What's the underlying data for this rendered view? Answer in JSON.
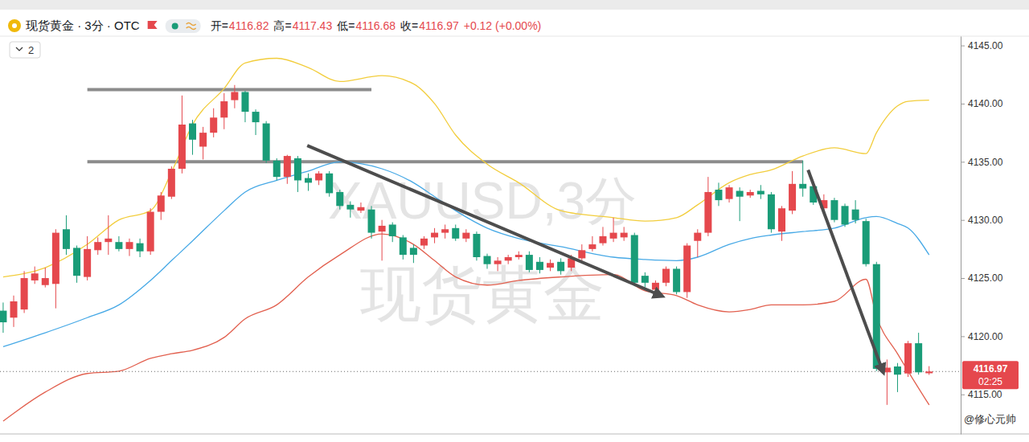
{
  "chart_data": {
    "type": "candlestick",
    "title": "现货黄金 · 3分 · OTC",
    "header": [
      {
        "label": "开=",
        "value": 4116.82
      },
      {
        "label": "高=",
        "value": 4117.43
      },
      {
        "label": "低=",
        "value": 4116.68
      },
      {
        "label": "收=",
        "value": 4116.97
      }
    ],
    "change": "+0.12 (+0.00%)",
    "dropdown": 2,
    "watermark": [
      "XAUUSD,3分",
      "现货黄金"
    ],
    "countdown": "02:25",
    "credit": "@修心元帅",
    "open": [
      4122.2,
      4121.6,
      4122.3,
      4124.8,
      4124.4,
      4124.5,
      4129.2,
      4127.6,
      4125.1,
      4127.4,
      4128.1,
      4128.1,
      4127.5,
      4128.0,
      4127.3,
      4130.7,
      4132.0,
      4134.4,
      4138.3,
      4136.3,
      4137.5,
      4138.8,
      4140.3,
      4141.0,
      4139.3,
      4138.3,
      4135.1,
      4133.7,
      4135.3,
      4133.6,
      4133.4,
      4134.0,
      4132.4,
      4131.3,
      4130.8,
      4130.9,
      4129.0,
      4129.6,
      4128.5,
      4127.6,
      4127.8,
      4128.5,
      4128.9,
      4129.3,
      4128.4,
      4128.8,
      4126.9,
      4126.2,
      4126.5,
      4126.8,
      4127.0,
      4126.4,
      4125.9,
      4126.4,
      4125.9,
      4126.7,
      4127.5,
      4128.0,
      4128.4,
      4128.5,
      4128.7,
      4125.2,
      4124.0,
      4124.6,
      4125.8,
      4123.8,
      4128.2,
      4128.9,
      4132.6,
      4131.8,
      4132.5,
      4132.1,
      4132.5,
      4132.2,
      4129.0,
      4130.8,
      4133.1,
      4132.9,
      4131.0,
      4131.7,
      4131.2,
      4130.9,
      4129.9,
      4126.2,
      4116.9,
      4117.4,
      4116.8,
      4119.4,
      4116.82
    ],
    "high": [
      4122.9,
      4123.5,
      4125.6,
      4126.0,
      4125.9,
      4129.2,
      4130.4,
      4127.8,
      4128.6,
      4128.5,
      4130.4,
      4128.6,
      4128.4,
      4128.4,
      4131.0,
      4132.4,
      4134.6,
      4140.7,
      4138.6,
      4138.0,
      4139.6,
      4140.9,
      4141.6,
      4141.1,
      4139.5,
      4138.5,
      4135.3,
      4135.6,
      4135.5,
      4134.0,
      4134.2,
      4134.2,
      4132.6,
      4131.6,
      4131.5,
      4131.2,
      4130.0,
      4129.8,
      4128.7,
      4127.9,
      4128.6,
      4129.3,
      4129.6,
      4129.6,
      4129.2,
      4129.0,
      4127.1,
      4126.8,
      4127.0,
      4127.3,
      4127.3,
      4126.8,
      4126.6,
      4126.7,
      4127.0,
      4127.9,
      4128.6,
      4129.4,
      4130.2,
      4129.4,
      4128.9,
      4125.5,
      4124.8,
      4126.0,
      4126.0,
      4128.0,
      4129.2,
      4133.7,
      4133.2,
      4133.0,
      4132.8,
      4132.6,
      4133.0,
      4132.4,
      4131.2,
      4134.2,
      4135.1,
      4133.1,
      4132.2,
      4131.9,
      4131.4,
      4131.7,
      4130.1,
      4126.4,
      4118.0,
      4117.7,
      4119.6,
      4120.3,
      4117.43
    ],
    "low": [
      4120.3,
      4120.8,
      4122.0,
      4124.5,
      4124.2,
      4122.4,
      4127.0,
      4124.6,
      4124.8,
      4127.0,
      4127.0,
      4127.3,
      4126.9,
      4126.8,
      4127.0,
      4130.0,
      4131.8,
      4134.0,
      4135.6,
      4135.2,
      4137.1,
      4137.8,
      4139.6,
      4138.4,
      4137.3,
      4134.9,
      4133.4,
      4133.1,
      4132.4,
      4132.5,
      4133.0,
      4132.0,
      4130.9,
      4130.2,
      4130.6,
      4128.4,
      4126.5,
      4128.1,
      4126.6,
      4126.3,
      4127.5,
      4128.0,
      4128.4,
      4128.2,
      4128.1,
      4126.5,
      4125.8,
      4125.6,
      4126.2,
      4126.6,
      4125.5,
      4125.4,
      4125.6,
      4125.3,
      4125.6,
      4126.4,
      4127.3,
      4127.8,
      4128.1,
      4128.2,
      4124.3,
      4124.2,
      4123.7,
      4124.3,
      4123.6,
      4123.3,
      4126.8,
      4128.6,
      4131.2,
      4131.5,
      4129.9,
      4131.9,
      4131.8,
      4128.9,
      4128.2,
      4130.5,
      4132.0,
      4131.3,
      4130.7,
      4129.8,
      4129.4,
      4129.7,
      4126.0,
      4117.0,
      4114.1,
      4115.2,
      4116.5,
      4116.7,
      4116.68
    ],
    "close": [
      4121.2,
      4123.0,
      4125.0,
      4125.4,
      4125.0,
      4128.9,
      4127.5,
      4125.2,
      4127.5,
      4128.1,
      4128.4,
      4127.5,
      4128.1,
      4127.3,
      4130.7,
      4132.1,
      4134.4,
      4138.2,
      4136.9,
      4137.5,
      4138.8,
      4140.2,
      4141.0,
      4139.3,
      4138.4,
      4135.1,
      4133.7,
      4135.5,
      4133.4,
      4133.2,
      4134.0,
      4132.3,
      4131.2,
      4130.9,
      4131.1,
      4128.9,
      4129.5,
      4128.6,
      4127.0,
      4127.0,
      4128.4,
      4128.9,
      4129.2,
      4128.4,
      4128.9,
      4126.8,
      4126.2,
      4126.5,
      4126.8,
      4127.0,
      4125.7,
      4125.7,
      4126.3,
      4125.6,
      4126.7,
      4127.4,
      4127.9,
      4128.6,
      4128.9,
      4128.9,
      4124.6,
      4124.6,
      4124.6,
      4125.8,
      4123.8,
      4127.8,
      4128.9,
      4132.4,
      4131.7,
      4132.8,
      4132.0,
      4132.4,
      4132.2,
      4129.2,
      4131.0,
      4133.1,
      4132.7,
      4131.5,
      4131.7,
      4130.0,
      4129.6,
      4130.0,
      4126.2,
      4117.2,
      4117.3,
      4116.7,
      4119.4,
      4116.9,
      4116.97
    ],
    "series": [
      {
        "type": "line",
        "color": "#f2cd3c",
        "x": [
          0,
          4,
          8,
          11,
          14,
          16,
          18,
          21,
          23,
          26,
          29,
          32,
          36,
          39,
          41,
          43,
          46,
          49,
          53,
          58,
          61,
          64,
          66,
          69,
          71,
          73,
          76,
          79,
          82,
          83,
          85,
          86,
          88
        ],
        "values": [
          4125.1,
          4125.9,
          4127.9,
          4130.0,
          4130.8,
          4134.1,
          4138.2,
          4141.3,
          4143.5,
          4143.9,
          4143.1,
          4141.9,
          4142.4,
          4141.7,
          4140.0,
          4137.3,
          4134.8,
          4133.2,
          4130.8,
          4130.2,
          4129.9,
          4130.2,
          4131.3,
          4133.2,
          4133.9,
          4134.3,
          4135.5,
          4136.2,
          4135.7,
          4137.5,
          4139.8,
          4140.2,
          4140.3
        ]
      },
      {
        "type": "line",
        "color": "#47a9e6",
        "x": [
          0,
          4,
          8,
          11,
          14,
          16,
          18,
          21,
          23,
          26,
          29,
          32,
          36,
          39,
          41,
          43,
          46,
          49,
          53,
          58,
          61,
          64,
          66,
          69,
          71,
          73,
          76,
          79,
          82,
          83,
          85,
          86,
          88
        ],
        "values": [
          4119.1,
          4120.3,
          4121.6,
          4122.7,
          4124.8,
          4126.5,
          4128.2,
          4130.8,
          4132.4,
          4133.4,
          4134.2,
          4135.0,
          4134.4,
          4133.2,
          4132.0,
          4130.8,
          4129.3,
          4128.4,
          4127.7,
          4126.8,
          4126.6,
          4126.5,
          4126.8,
          4127.9,
          4128.4,
          4128.7,
          4129.0,
          4129.3,
          4130.2,
          4130.3,
          4129.7,
          4129.3,
          4127.0
        ]
      },
      {
        "type": "line",
        "color": "#e2604f",
        "x": [
          0,
          4,
          8,
          11,
          14,
          16,
          18,
          21,
          23,
          26,
          29,
          32,
          36,
          39,
          41,
          43,
          46,
          49,
          53,
          58,
          61,
          64,
          66,
          69,
          71,
          73,
          76,
          79,
          82,
          83,
          85,
          86,
          88
        ],
        "values": [
          4112.7,
          4115.2,
          4116.8,
          4117.0,
          4118.1,
          4118.5,
          4118.8,
          4119.9,
          4121.5,
          4122.7,
          4125.1,
          4127.0,
          4128.8,
          4127.9,
          4126.5,
          4125.1,
          4124.4,
          4124.8,
          4125.1,
          4125.3,
          4123.9,
          4123.5,
          4122.7,
          4122.1,
          4122.3,
          4122.7,
          4122.7,
          4123.0,
          4124.9,
          4121.7,
          4118.5,
          4117.0,
          4114.1
        ]
      }
    ],
    "levels": [
      {
        "value": 4141.2,
        "x": [
          8,
          35
        ]
      },
      {
        "value": 4135.0,
        "x": [
          8,
          76
        ]
      }
    ],
    "arrows": [
      {
        "x": [
          28.9,
          62.5
        ],
        "y": [
          4136.4,
          4123.5
        ]
      },
      {
        "x": [
          76.5,
          83.6
        ],
        "y": [
          4134.3,
          4117.0
        ]
      }
    ],
    "xlim": [
      -0.3,
      91
    ],
    "ylim": [
      4111.6,
      4145.8
    ],
    "yticks": [
      {
        "value": 4115,
        "label": "4115.00"
      },
      {
        "value": 4120,
        "label": "4120.00"
      },
      {
        "value": 4125,
        "label": "4125.00"
      },
      {
        "value": 4130,
        "label": "4130.00"
      },
      {
        "value": 4135,
        "label": "4135.00"
      },
      {
        "value": 4140,
        "label": "4140.00"
      },
      {
        "value": 4145,
        "label": "4145.00"
      }
    ],
    "tick_labels": "y",
    "grid": false
  }
}
